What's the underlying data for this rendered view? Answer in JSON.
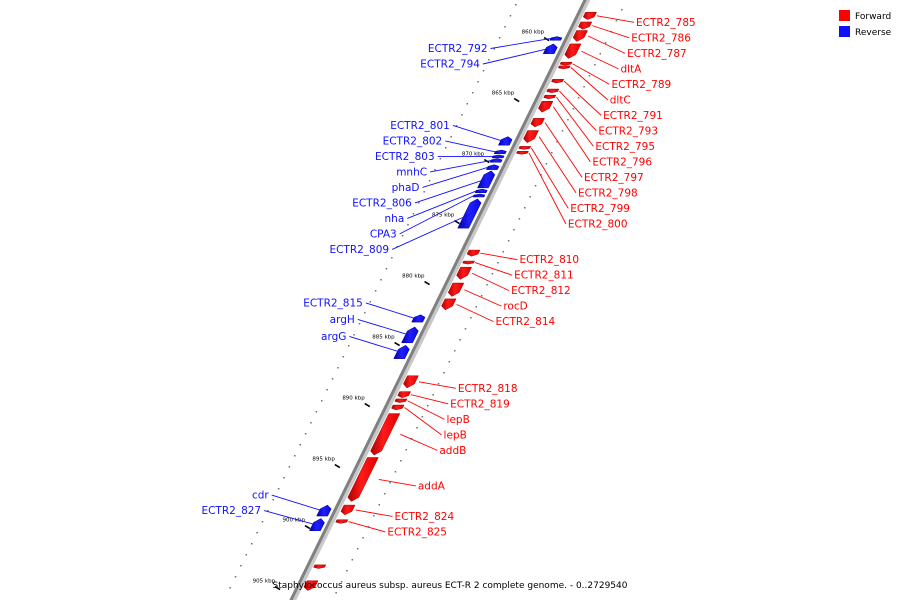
{
  "caption": "Staphylococcus aureus subsp. aureus ECT-R 2 complete genome. - 0..2729540",
  "legend": [
    {
      "label": "Forward",
      "color": "#ff0000"
    },
    {
      "label": "Reverse",
      "color": "#1010ff"
    }
  ],
  "colors": {
    "forward": "#ff0000",
    "reverse": "#1010ff",
    "backbone": "#808080"
  },
  "axis": {
    "start_kbp": 858,
    "end_kbp": 906,
    "tick_labels": [
      {
        "kbp": 860,
        "label": "860 kbp"
      },
      {
        "kbp": 865,
        "label": "865 kbp"
      },
      {
        "kbp": 870,
        "label": "870 kbp"
      },
      {
        "kbp": 875,
        "label": "875 kbp"
      },
      {
        "kbp": 880,
        "label": "880 kbp"
      },
      {
        "kbp": 885,
        "label": "885 kbp"
      },
      {
        "kbp": 890,
        "label": "890 kbp"
      },
      {
        "kbp": 895,
        "label": "895 kbp"
      },
      {
        "kbp": 900,
        "label": "900 kbp"
      },
      {
        "kbp": 905,
        "label": "905 kbp"
      }
    ]
  },
  "forward_genes": [
    {
      "label": "ECTR2_785",
      "start": 858.0,
      "end": 858.6
    },
    {
      "label": "ECTR2_786",
      "start": 858.8,
      "end": 859.4
    },
    {
      "label": "ECTR2_787",
      "start": 859.5,
      "end": 860.4
    },
    {
      "label": "dltA",
      "start": 860.6,
      "end": 861.8
    },
    {
      "label": "ECTR2_789",
      "start": 862.1,
      "end": 862.3
    },
    {
      "label": "dltC",
      "start": 862.4,
      "end": 862.6
    },
    {
      "label": "ECTR2_791",
      "start": 863.5,
      "end": 863.8
    },
    {
      "label": "ECTR2_793",
      "start": 864.3,
      "end": 864.6
    },
    {
      "label": "ECTR2_795",
      "start": 864.8,
      "end": 865.1
    },
    {
      "label": "ECTR2_796",
      "start": 865.3,
      "end": 866.2
    },
    {
      "label": "ECTR2_797",
      "start": 866.7,
      "end": 867.4
    },
    {
      "label": "ECTR2_798",
      "start": 867.7,
      "end": 868.7
    },
    {
      "label": "ECTR2_799",
      "start": 869.0,
      "end": 869.2
    },
    {
      "label": "ECTR2_800",
      "start": 869.4,
      "end": 869.6
    },
    {
      "label": "ECTR2_810",
      "start": 877.5,
      "end": 878.0
    },
    {
      "label": "ECTR2_811",
      "start": 878.4,
      "end": 878.6
    },
    {
      "label": "ECTR2_812",
      "start": 878.9,
      "end": 879.9
    },
    {
      "label": "rocD",
      "start": 880.2,
      "end": 881.3
    },
    {
      "label": "ECTR2_814",
      "start": 881.5,
      "end": 882.4
    },
    {
      "label": "ECTR2_818",
      "start": 887.8,
      "end": 888.8
    },
    {
      "label": "ECTR2_819",
      "start": 889.1,
      "end": 889.6
    },
    {
      "label": "lepB",
      "start": 889.7,
      "end": 890.0
    },
    {
      "label": "lepB",
      "start": 890.2,
      "end": 890.6
    },
    {
      "label": "addB",
      "start": 890.9,
      "end": 894.3
    },
    {
      "label": "addA",
      "start": 894.5,
      "end": 898.1
    },
    {
      "label": "ECTR2_824",
      "start": 898.4,
      "end": 899.2
    },
    {
      "label": "ECTR2_825",
      "start": 899.6,
      "end": 899.9
    },
    {
      "label": "",
      "start": 903.3,
      "end": 903.6
    },
    {
      "label": "",
      "start": 904.6,
      "end": 905.4
    }
  ],
  "reverse_genes": [
    {
      "label": "ECTR2_792",
      "start": 860.0,
      "end": 860.3
    },
    {
      "label": "ECTR2_794",
      "start": 860.6,
      "end": 861.4
    },
    {
      "label": "ECTR2_801",
      "start": 868.2,
      "end": 868.9
    },
    {
      "label": "ECTR2_802",
      "start": 869.3,
      "end": 869.6
    },
    {
      "label": "ECTR2_803",
      "start": 869.7,
      "end": 869.9
    },
    {
      "label": "mnhC",
      "start": 870.0,
      "end": 870.3
    },
    {
      "label": "phaD",
      "start": 870.5,
      "end": 870.9
    },
    {
      "label": "ECTR2_806",
      "start": 871.0,
      "end": 872.4
    },
    {
      "label": "nha",
      "start": 872.5,
      "end": 872.8
    },
    {
      "label": "CPA3",
      "start": 872.9,
      "end": 873.1
    },
    {
      "label": "ECTR2_809",
      "start": 873.3,
      "end": 875.7
    },
    {
      "label": "ECTR2_815",
      "start": 882.8,
      "end": 883.4
    },
    {
      "label": "argH",
      "start": 883.8,
      "end": 885.1
    },
    {
      "label": "argG",
      "start": 885.3,
      "end": 886.4
    },
    {
      "label": "cdr",
      "start": 898.4,
      "end": 899.3
    },
    {
      "label": "ECTR2_827",
      "start": 899.5,
      "end": 900.5
    }
  ]
}
